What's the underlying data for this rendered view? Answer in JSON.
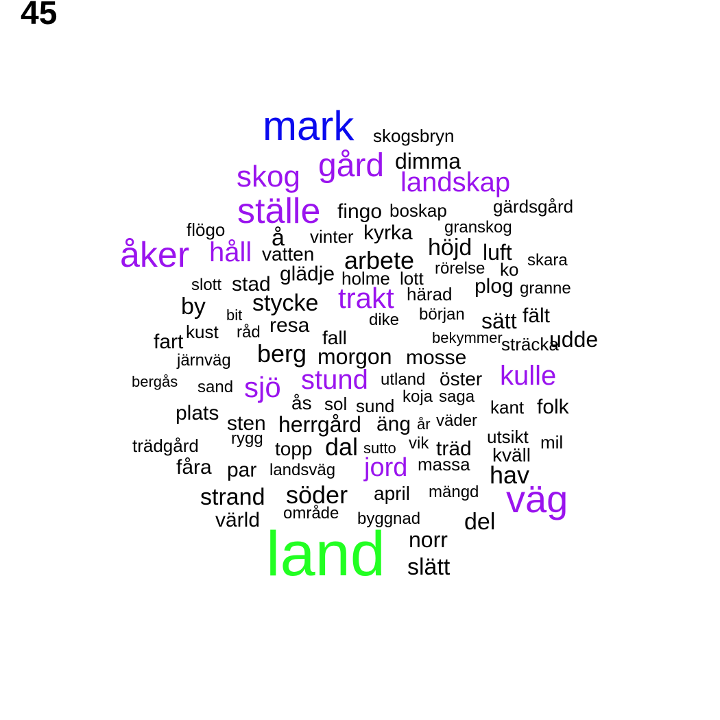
{
  "label": "45",
  "colors": {
    "green": "#22ff22",
    "blue": "#0a0aee",
    "purple": "#9a14ee",
    "black": "#000000"
  },
  "words": [
    {
      "text": "land",
      "color": "green"
    },
    {
      "text": "mark",
      "color": "blue"
    },
    {
      "text": "väg",
      "color": "purple"
    },
    {
      "text": "ställe",
      "color": "purple"
    },
    {
      "text": "åker",
      "color": "purple"
    },
    {
      "text": "gård",
      "color": "purple"
    },
    {
      "text": "skog",
      "color": "purple"
    },
    {
      "text": "landskap",
      "color": "purple"
    },
    {
      "text": "trakt",
      "color": "purple"
    },
    {
      "text": "stund",
      "color": "purple"
    },
    {
      "text": "sjö",
      "color": "purple"
    },
    {
      "text": "kulle",
      "color": "purple"
    },
    {
      "text": "jord",
      "color": "purple"
    },
    {
      "text": "håll",
      "color": "purple"
    },
    {
      "text": "skogsbryn",
      "color": "black"
    },
    {
      "text": "dimma",
      "color": "black"
    },
    {
      "text": "gärdsgård",
      "color": "black"
    },
    {
      "text": "fingo",
      "color": "black"
    },
    {
      "text": "boskap",
      "color": "black"
    },
    {
      "text": "flögo",
      "color": "black"
    },
    {
      "text": "granskog",
      "color": "black"
    },
    {
      "text": "å",
      "color": "black"
    },
    {
      "text": "vinter",
      "color": "black"
    },
    {
      "text": "kyrka",
      "color": "black"
    },
    {
      "text": "höjd",
      "color": "black"
    },
    {
      "text": "luft",
      "color": "black"
    },
    {
      "text": "vatten",
      "color": "black"
    },
    {
      "text": "arbete",
      "color": "black"
    },
    {
      "text": "skara",
      "color": "black"
    },
    {
      "text": "rörelse",
      "color": "black"
    },
    {
      "text": "ko",
      "color": "black"
    },
    {
      "text": "glädje",
      "color": "black"
    },
    {
      "text": "holme",
      "color": "black"
    },
    {
      "text": "lott",
      "color": "black"
    },
    {
      "text": "slott",
      "color": "black"
    },
    {
      "text": "stad",
      "color": "black"
    },
    {
      "text": "plog",
      "color": "black"
    },
    {
      "text": "granne",
      "color": "black"
    },
    {
      "text": "by",
      "color": "black"
    },
    {
      "text": "stycke",
      "color": "black"
    },
    {
      "text": "härad",
      "color": "black"
    },
    {
      "text": "bit",
      "color": "black"
    },
    {
      "text": "dike",
      "color": "black"
    },
    {
      "text": "början",
      "color": "black"
    },
    {
      "text": "sätt",
      "color": "black"
    },
    {
      "text": "fält",
      "color": "black"
    },
    {
      "text": "kust",
      "color": "black"
    },
    {
      "text": "råd",
      "color": "black"
    },
    {
      "text": "resa",
      "color": "black"
    },
    {
      "text": "fall",
      "color": "black"
    },
    {
      "text": "bekymmer",
      "color": "black"
    },
    {
      "text": "sträcka",
      "color": "black"
    },
    {
      "text": "udde",
      "color": "black"
    },
    {
      "text": "fart",
      "color": "black"
    },
    {
      "text": "järnväg",
      "color": "black"
    },
    {
      "text": "berg",
      "color": "black"
    },
    {
      "text": "morgon",
      "color": "black"
    },
    {
      "text": "mosse",
      "color": "black"
    },
    {
      "text": "bergås",
      "color": "black"
    },
    {
      "text": "sand",
      "color": "black"
    },
    {
      "text": "utland",
      "color": "black"
    },
    {
      "text": "öster",
      "color": "black"
    },
    {
      "text": "ås",
      "color": "black"
    },
    {
      "text": "sol",
      "color": "black"
    },
    {
      "text": "sund",
      "color": "black"
    },
    {
      "text": "koja",
      "color": "black"
    },
    {
      "text": "saga",
      "color": "black"
    },
    {
      "text": "kant",
      "color": "black"
    },
    {
      "text": "folk",
      "color": "black"
    },
    {
      "text": "plats",
      "color": "black"
    },
    {
      "text": "sten",
      "color": "black"
    },
    {
      "text": "herrgård",
      "color": "black"
    },
    {
      "text": "äng",
      "color": "black"
    },
    {
      "text": "år",
      "color": "black"
    },
    {
      "text": "väder",
      "color": "black"
    },
    {
      "text": "trädgård",
      "color": "black"
    },
    {
      "text": "rygg",
      "color": "black"
    },
    {
      "text": "topp",
      "color": "black"
    },
    {
      "text": "dal",
      "color": "black"
    },
    {
      "text": "sutto",
      "color": "black"
    },
    {
      "text": "vik",
      "color": "black"
    },
    {
      "text": "träd",
      "color": "black"
    },
    {
      "text": "utsikt",
      "color": "black"
    },
    {
      "text": "mil",
      "color": "black"
    },
    {
      "text": "kväll",
      "color": "black"
    },
    {
      "text": "fåra",
      "color": "black"
    },
    {
      "text": "par",
      "color": "black"
    },
    {
      "text": "landsväg",
      "color": "black"
    },
    {
      "text": "massa",
      "color": "black"
    },
    {
      "text": "hav",
      "color": "black"
    },
    {
      "text": "strand",
      "color": "black"
    },
    {
      "text": "söder",
      "color": "black"
    },
    {
      "text": "april",
      "color": "black"
    },
    {
      "text": "mängd",
      "color": "black"
    },
    {
      "text": "värld",
      "color": "black"
    },
    {
      "text": "område",
      "color": "black"
    },
    {
      "text": "byggnad",
      "color": "black"
    },
    {
      "text": "del",
      "color": "black"
    },
    {
      "text": "norr",
      "color": "black"
    },
    {
      "text": "slätt",
      "color": "black"
    }
  ]
}
